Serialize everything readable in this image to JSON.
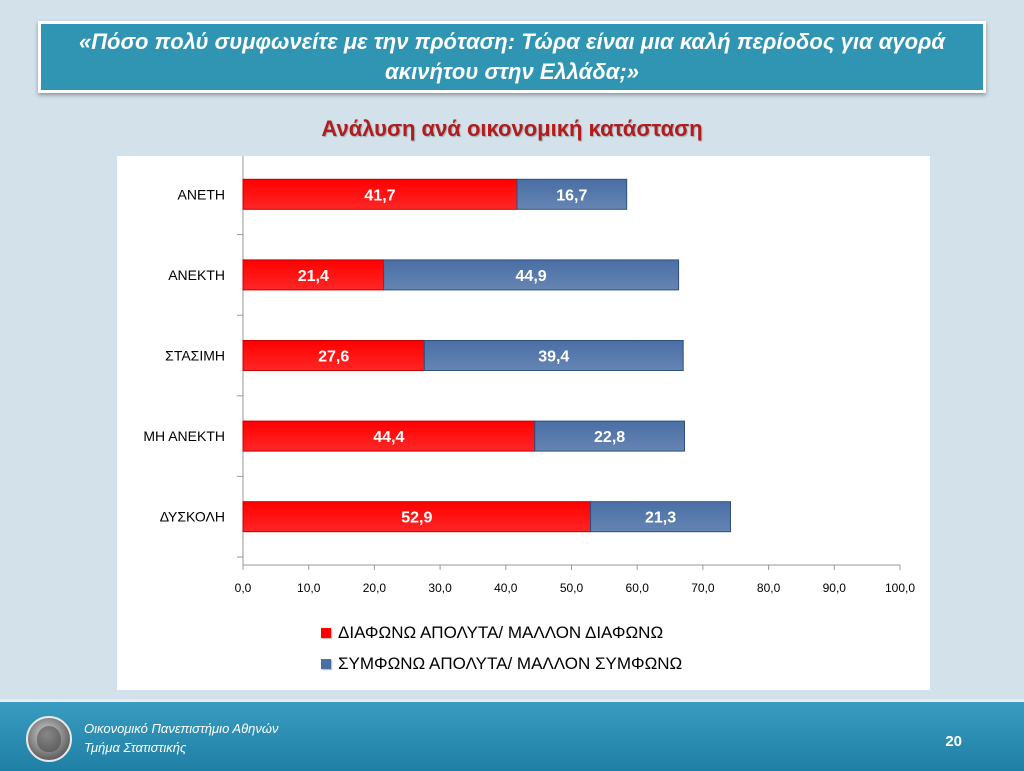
{
  "slide": {
    "title": "«Πόσο πολύ συμφωνείτε με την πρόταση: Τώρα είναι μια καλή περίοδος για αγορά ακινήτου στην Ελλάδα;»",
    "subtitle": "Ανάλυση ανά οικονομική κατάσταση"
  },
  "footer": {
    "line1": "Οικονομικό Πανεπιστήμιο Αθηνών",
    "line2": "Τμήμα Στατιστικής",
    "page": "20"
  },
  "colors": {
    "disagree": "#ff0000",
    "agree": "#4a6fa5",
    "title_bg": "#2f95b3",
    "subtitle": "#b21c1c"
  },
  "chart_data": {
    "type": "bar",
    "orientation": "horizontal",
    "stacked": true,
    "categories": [
      "ΑΝΕΤΗ",
      "ΑΝΕΚΤΗ",
      "ΣΤΑΣΙΜΗ",
      "ΜΗ ΑΝΕΚΤΗ",
      "ΔΥΣΚΟΛΗ"
    ],
    "series": [
      {
        "name": "ΔΙΑΦΩΝΩ ΑΠΟΛΥΤΑ/ ΜΑΛΛΟΝ ΔΙΑΦΩΝΩ",
        "color": "#ff0000",
        "values": [
          41.7,
          21.4,
          27.6,
          44.4,
          52.9
        ],
        "labels": [
          "41,7",
          "21,4",
          "27,6",
          "44,4",
          "52,9"
        ]
      },
      {
        "name": "ΣΥΜΦΩΝΩ ΑΠΟΛΥΤΑ/ ΜΑΛΛΟΝ ΣΥΜΦΩΝΩ",
        "color": "#4a6fa5",
        "values": [
          16.7,
          44.9,
          39.4,
          22.8,
          21.3
        ],
        "labels": [
          "16,7",
          "44,9",
          "39,4",
          "22,8",
          "21,3"
        ]
      }
    ],
    "xlim": [
      0,
      100
    ],
    "xticks": [
      0,
      10,
      20,
      30,
      40,
      50,
      60,
      70,
      80,
      90,
      100
    ],
    "xtick_labels": [
      "0,0",
      "10,0",
      "20,0",
      "30,0",
      "40,0",
      "50,0",
      "60,0",
      "70,0",
      "80,0",
      "90,0",
      "100,0"
    ],
    "legend_position": "bottom",
    "grid": false
  }
}
